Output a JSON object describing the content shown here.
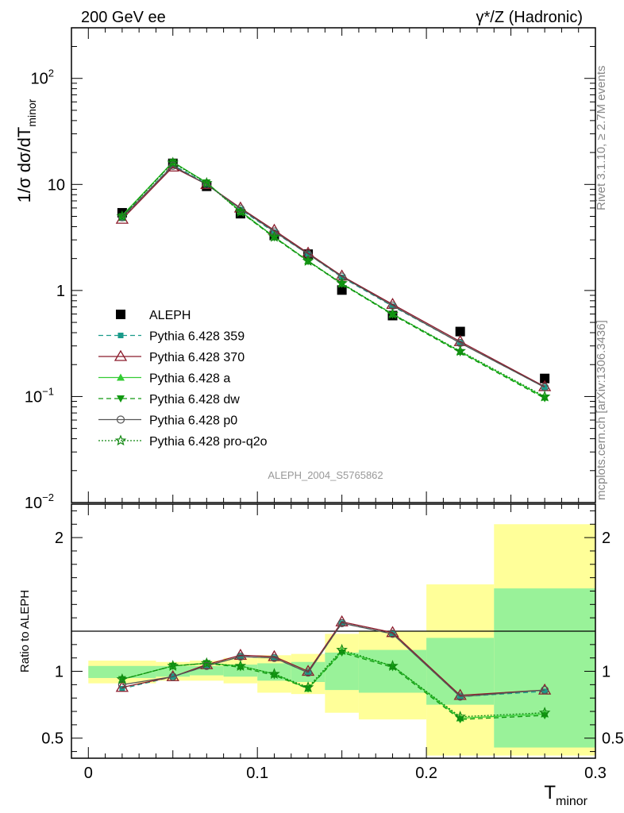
{
  "header": {
    "left": "200 GeV ee",
    "right": "γ*/Z (Hadronic)"
  },
  "side_labels": {
    "rivet": "Rivet 3.1.10, ≥ 2.7M events",
    "mcplots": "mcplots.cern.ch [arXiv:1306.3436]"
  },
  "analysis_label": "ALEPH_2004_S5765862",
  "colors": {
    "data": "#000000",
    "p359": "#1a9b8a",
    "p370": "#8b1a2b",
    "pa": "#33cc33",
    "pdw": "#119911",
    "pp0": "#555555",
    "pq2o": "#118811",
    "band_green": "#99f299",
    "band_yellow": "#ffff99"
  },
  "chart_data": [
    {
      "type": "line",
      "panel": "main",
      "ylabel": "1/σ  dσ/dT_minor",
      "yscale": "log",
      "ylim": [
        0.01,
        300
      ],
      "xlim": [
        -0.01,
        0.3
      ],
      "y_ticks": [
        "10^-2",
        "10^-1",
        "1",
        "10",
        "10^2"
      ],
      "legend_position": "lower-left",
      "x": [
        0.02,
        0.05,
        0.07,
        0.09,
        0.11,
        0.13,
        0.15,
        0.18,
        0.22,
        0.27
      ],
      "series": [
        {
          "name": "ALEPH",
          "key": "data",
          "style": "square",
          "values": [
            5.4,
            15.8,
            9.6,
            5.3,
            3.3,
            2.2,
            1.01,
            0.58,
            0.41,
            0.148
          ]
        },
        {
          "name": "Pythia 6.428 359",
          "key": "p359",
          "style": "dashed-square",
          "values": [
            4.8,
            15.3,
            10.1,
            5.8,
            3.55,
            2.2,
            1.33,
            0.71,
            0.32,
            0.122
          ]
        },
        {
          "name": "Pythia 6.428 370",
          "key": "p370",
          "style": "solid-triangle-open",
          "values": [
            4.7,
            14.6,
            10.0,
            6.0,
            3.7,
            2.25,
            1.37,
            0.74,
            0.33,
            0.124
          ]
        },
        {
          "name": "Pythia 6.428 a",
          "key": "pa",
          "style": "solid-triangle",
          "values": [
            5.1,
            16.3,
            10.4,
            5.6,
            3.2,
            1.9,
            1.16,
            0.6,
            0.265,
            0.098
          ]
        },
        {
          "name": "Pythia 6.428 dw",
          "key": "pdw",
          "style": "dashed-triangle-down",
          "values": [
            5.0,
            16.2,
            10.4,
            5.5,
            3.15,
            1.88,
            1.15,
            0.59,
            0.26,
            0.096
          ]
        },
        {
          "name": "Pythia 6.428 p0",
          "key": "pp0",
          "style": "solid-circle-open",
          "values": [
            4.9,
            15.0,
            10.0,
            5.9,
            3.6,
            2.2,
            1.35,
            0.72,
            0.32,
            0.122
          ]
        },
        {
          "name": "Pythia 6.428 pro-q2o",
          "key": "pq2o",
          "style": "dotted-star",
          "values": [
            5.0,
            16.0,
            10.3,
            5.5,
            3.2,
            1.9,
            1.17,
            0.6,
            0.268,
            0.1
          ]
        }
      ]
    },
    {
      "type": "line",
      "panel": "ratio",
      "ylabel": "Ratio to ALEPH",
      "xlabel": "T_minor",
      "xlim": [
        -0.01,
        0.3
      ],
      "ylim": [
        0.35,
        2.25
      ],
      "y_ticks": [
        "0.5",
        "1",
        "2"
      ],
      "x_ticks": [
        "0",
        "0.1",
        "0.2",
        "0.3"
      ],
      "reference_line": 1,
      "bands": [
        {
          "x0": 0.0,
          "x1": 0.04,
          "green": [
            0.95,
            1.04
          ],
          "yellow": [
            0.91,
            1.08
          ]
        },
        {
          "x0": 0.04,
          "x1": 0.06,
          "green": [
            0.96,
            1.04
          ],
          "yellow": [
            0.93,
            1.07
          ]
        },
        {
          "x0": 0.06,
          "x1": 0.08,
          "green": [
            0.97,
            1.04
          ],
          "yellow": [
            0.93,
            1.08
          ]
        },
        {
          "x0": 0.08,
          "x1": 0.1,
          "green": [
            0.96,
            1.05
          ],
          "yellow": [
            0.91,
            1.1
          ]
        },
        {
          "x0": 0.1,
          "x1": 0.12,
          "green": [
            0.93,
            1.06
          ],
          "yellow": [
            0.84,
            1.12
          ]
        },
        {
          "x0": 0.12,
          "x1": 0.14,
          "green": [
            0.92,
            1.07
          ],
          "yellow": [
            0.83,
            1.13
          ]
        },
        {
          "x0": 0.14,
          "x1": 0.16,
          "green": [
            0.86,
            1.14
          ],
          "yellow": [
            0.69,
            1.28
          ]
        },
        {
          "x0": 0.16,
          "x1": 0.2,
          "green": [
            0.84,
            1.16
          ],
          "yellow": [
            0.64,
            1.3
          ]
        },
        {
          "x0": 0.2,
          "x1": 0.24,
          "green": [
            0.75,
            1.25
          ],
          "yellow": [
            0.37,
            1.65
          ]
        },
        {
          "x0": 0.24,
          "x1": 0.3,
          "green": [
            0.43,
            1.62
          ],
          "yellow": [
            0.37,
            2.1
          ]
        }
      ],
      "x": [
        0.02,
        0.05,
        0.07,
        0.09,
        0.11,
        0.13,
        0.15,
        0.18,
        0.22,
        0.27
      ],
      "series": [
        {
          "name": "Pythia 6.428 359",
          "key": "p359",
          "style": "dashed-square",
          "values": [
            0.87,
            0.96,
            1.04,
            1.11,
            1.1,
            0.99,
            1.36,
            1.28,
            0.81,
            0.85
          ]
        },
        {
          "name": "Pythia 6.428 370",
          "key": "p370",
          "style": "solid-triangle-open",
          "values": [
            0.88,
            0.96,
            1.05,
            1.12,
            1.11,
            1.0,
            1.37,
            1.29,
            0.82,
            0.86
          ]
        },
        {
          "name": "Pythia 6.428 a",
          "key": "pa",
          "style": "solid-triangle",
          "values": [
            0.94,
            1.04,
            1.06,
            1.04,
            0.98,
            0.87,
            1.15,
            1.04,
            0.65,
            0.68
          ]
        },
        {
          "name": "Pythia 6.428 dw",
          "key": "pdw",
          "style": "dashed-triangle-down",
          "values": [
            0.94,
            1.04,
            1.06,
            1.03,
            0.97,
            0.87,
            1.14,
            1.03,
            0.64,
            0.67
          ]
        },
        {
          "name": "Pythia 6.428 p0",
          "key": "pp0",
          "style": "solid-circle-open",
          "values": [
            0.9,
            0.96,
            1.04,
            1.11,
            1.1,
            0.99,
            1.36,
            1.28,
            0.81,
            0.86
          ]
        },
        {
          "name": "Pythia 6.428 pro-q2o",
          "key": "pq2o",
          "style": "dotted-star",
          "values": [
            0.94,
            1.04,
            1.06,
            1.04,
            0.98,
            0.88,
            1.16,
            1.04,
            0.66,
            0.69
          ]
        }
      ]
    }
  ]
}
